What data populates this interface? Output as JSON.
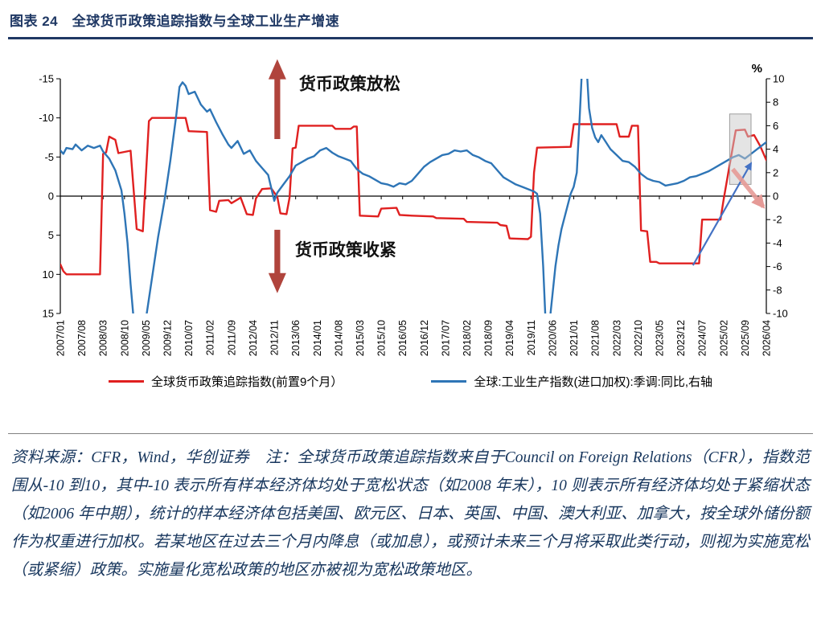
{
  "title": "图表 24　全球货币政策追踪指数与全球工业生产增速",
  "footnote": "资料来源：CFR，Wind，华创证券　注：全球货币政策追踪指数来自于Council on Foreign Relations（CFR），指数范围从-10 到10，其中-10 表示所有样本经济体均处于宽松状态（如2008 年末），10 则表示所有经济体均处于紧缩状态（如2006 年中期），统计的样本经济体包括美国、欧元区、日本、英国、中国、澳大利亚、加拿大，按全球外储份额作为权重进行加权。若某地区在过去三个月内降息（或加息），或预计未来三个月将采取此类行动，则视为实施宽松（或紧缩）政策。实施量化宽松政策的地区亦被视为宽松政策地区。",
  "chart_data": {
    "type": "line",
    "title": "全球货币政策追踪指数与全球工业生产增速",
    "x_min": "2007/01",
    "x_max": "2026/04",
    "x_ticks": [
      "2007/01",
      "2007/08",
      "2008/03",
      "2008/10",
      "2009/05",
      "2009/12",
      "2010/07",
      "2011/02",
      "2011/09",
      "2012/04",
      "2012/11",
      "2013/06",
      "2014/01",
      "2014/08",
      "2015/03",
      "2015/10",
      "2016/05",
      "2016/12",
      "2017/07",
      "2018/02",
      "2018/09",
      "2019/04",
      "2019/11",
      "2020/06",
      "2021/01",
      "2021/08",
      "2022/03",
      "2022/10",
      "2023/05",
      "2023/12",
      "2024/07",
      "2025/02",
      "2025/09",
      "2026/04"
    ],
    "left_axis": {
      "min": -15,
      "max": 15,
      "inverted_display": true,
      "ticks": [
        -15,
        -10,
        -5,
        0,
        5,
        10,
        15
      ]
    },
    "right_axis": {
      "min": -10,
      "max": 10,
      "label": "%",
      "ticks": [
        10,
        8,
        6,
        4,
        2,
        0,
        -2,
        -4,
        -6,
        -8,
        -10
      ]
    },
    "grid": false,
    "legend_position": "bottom",
    "series": [
      {
        "name": "全球货币政策追踪指数(前置9个月）",
        "color": "#e02020",
        "axis": "left",
        "points": [
          [
            "2007/01",
            8.7
          ],
          [
            "2007/02",
            9.6
          ],
          [
            "2007/03",
            10
          ],
          [
            "2008/02",
            10
          ],
          [
            "2008/03",
            -5.4
          ],
          [
            "2008/04",
            -5.6
          ],
          [
            "2008/05",
            -7.6
          ],
          [
            "2008/07",
            -7.2
          ],
          [
            "2008/08",
            -5.5
          ],
          [
            "2008/12",
            -5.8
          ],
          [
            "2009/02",
            4.2
          ],
          [
            "2009/04",
            4.5
          ],
          [
            "2009/06",
            -9.6
          ],
          [
            "2009/07",
            -10
          ],
          [
            "2010/06",
            -10
          ],
          [
            "2010/07",
            -8.3
          ],
          [
            "2011/01",
            -8.2
          ],
          [
            "2011/02",
            1.8
          ],
          [
            "2011/04",
            2.0
          ],
          [
            "2011/05",
            0.6
          ],
          [
            "2011/08",
            0.5
          ],
          [
            "2011/09",
            0.9
          ],
          [
            "2011/12",
            0.2
          ],
          [
            "2012/02",
            2.3
          ],
          [
            "2012/04",
            2.4
          ],
          [
            "2012/05",
            0.3
          ],
          [
            "2012/07",
            -0.9
          ],
          [
            "2012/10",
            -1.0
          ],
          [
            "2012/12",
            0.1
          ],
          [
            "2013/01",
            2.2
          ],
          [
            "2013/03",
            2.3
          ],
          [
            "2013/04",
            0.2
          ],
          [
            "2013/05",
            -6.1
          ],
          [
            "2013/06",
            -6.2
          ],
          [
            "2013/07",
            -9.0
          ],
          [
            "2014/06",
            -9.0
          ],
          [
            "2014/07",
            -8.6
          ],
          [
            "2014/12",
            -8.6
          ],
          [
            "2015/01",
            -8.9
          ],
          [
            "2015/02",
            -8.9
          ],
          [
            "2015/03",
            2.5
          ],
          [
            "2015/09",
            2.6
          ],
          [
            "2015/10",
            1.6
          ],
          [
            "2016/03",
            1.5
          ],
          [
            "2016/04",
            2.4
          ],
          [
            "2016/08",
            2.5
          ],
          [
            "2017/03",
            2.6
          ],
          [
            "2017/04",
            2.8
          ],
          [
            "2018/01",
            2.9
          ],
          [
            "2018/02",
            3.3
          ],
          [
            "2018/12",
            3.4
          ],
          [
            "2019/01",
            3.7
          ],
          [
            "2019/03",
            3.8
          ],
          [
            "2019/04",
            5.4
          ],
          [
            "2019/10",
            5.5
          ],
          [
            "2019/11",
            5.2
          ],
          [
            "2019/12",
            -3.0
          ],
          [
            "2020/01",
            -6.2
          ],
          [
            "2020/12",
            -6.3
          ],
          [
            "2021/01",
            -9.2
          ],
          [
            "2022/03",
            -9.2
          ],
          [
            "2022/04",
            -7.6
          ],
          [
            "2022/07",
            -7.6
          ],
          [
            "2022/08",
            -9.0
          ],
          [
            "2022/10",
            -9.0
          ],
          [
            "2022/11",
            4.4
          ],
          [
            "2023/01",
            4.5
          ],
          [
            "2023/02",
            8.4
          ],
          [
            "2023/04",
            8.4
          ],
          [
            "2023/05",
            8.6
          ],
          [
            "2024/06",
            8.6
          ],
          [
            "2024/07",
            3.0
          ],
          [
            "2025/01",
            3.0
          ],
          [
            "2025/02",
            0.5
          ],
          [
            "2025/04",
            -4.0
          ],
          [
            "2025/06",
            -8.4
          ],
          [
            "2025/09",
            -8.5
          ],
          [
            "2025/10",
            -7.6
          ],
          [
            "2025/12",
            -7.8
          ],
          [
            "2026/02",
            -6.4
          ],
          [
            "2026/04",
            -4.6
          ]
        ]
      },
      {
        "name": "全球:工业生产指数(进口加权):季调:同比,右轴",
        "color": "#2e75b6",
        "axis": "right",
        "points": [
          [
            "2007/01",
            3.9
          ],
          [
            "2007/02",
            3.6
          ],
          [
            "2007/03",
            4.1
          ],
          [
            "2007/05",
            4.0
          ],
          [
            "2007/06",
            4.4
          ],
          [
            "2007/08",
            3.9
          ],
          [
            "2007/10",
            4.3
          ],
          [
            "2007/12",
            4.1
          ],
          [
            "2008/02",
            4.3
          ],
          [
            "2008/03",
            3.8
          ],
          [
            "2008/05",
            3.2
          ],
          [
            "2008/07",
            2.2
          ],
          [
            "2008/09",
            0.5
          ],
          [
            "2008/10",
            -1.5
          ],
          [
            "2008/11",
            -4.0
          ],
          [
            "2008/12",
            -7.5
          ],
          [
            "2009/01",
            -10.5
          ],
          [
            "2009/02",
            -12.0
          ],
          [
            "2009/04",
            -12.0
          ],
          [
            "2009/05",
            -10.5
          ],
          [
            "2009/07",
            -7.0
          ],
          [
            "2009/09",
            -3.5
          ],
          [
            "2009/11",
            -0.5
          ],
          [
            "2010/01",
            3.0
          ],
          [
            "2010/03",
            7.0
          ],
          [
            "2010/04",
            9.3
          ],
          [
            "2010/05",
            9.7
          ],
          [
            "2010/06",
            9.4
          ],
          [
            "2010/07",
            8.7
          ],
          [
            "2010/09",
            8.9
          ],
          [
            "2010/11",
            7.8
          ],
          [
            "2011/01",
            7.2
          ],
          [
            "2011/02",
            7.4
          ],
          [
            "2011/04",
            6.3
          ],
          [
            "2011/06",
            5.3
          ],
          [
            "2011/08",
            4.4
          ],
          [
            "2011/09",
            4.1
          ],
          [
            "2011/11",
            4.7
          ],
          [
            "2012/01",
            3.6
          ],
          [
            "2012/03",
            3.9
          ],
          [
            "2012/05",
            3.0
          ],
          [
            "2012/07",
            2.4
          ],
          [
            "2012/09",
            1.8
          ],
          [
            "2012/11",
            -0.4
          ],
          [
            "2012/12",
            0.3
          ],
          [
            "2013/02",
            1.0
          ],
          [
            "2013/04",
            1.7
          ],
          [
            "2013/06",
            2.6
          ],
          [
            "2013/08",
            2.9
          ],
          [
            "2013/10",
            3.2
          ],
          [
            "2013/12",
            3.4
          ],
          [
            "2014/02",
            3.9
          ],
          [
            "2014/04",
            4.1
          ],
          [
            "2014/06",
            3.7
          ],
          [
            "2014/08",
            3.4
          ],
          [
            "2014/10",
            3.2
          ],
          [
            "2014/12",
            3.0
          ],
          [
            "2015/02",
            2.3
          ],
          [
            "2015/04",
            1.9
          ],
          [
            "2015/06",
            1.7
          ],
          [
            "2015/08",
            1.4
          ],
          [
            "2015/10",
            1.1
          ],
          [
            "2015/12",
            1.0
          ],
          [
            "2016/02",
            0.8
          ],
          [
            "2016/04",
            1.1
          ],
          [
            "2016/06",
            1.0
          ],
          [
            "2016/08",
            1.3
          ],
          [
            "2016/10",
            1.9
          ],
          [
            "2016/12",
            2.5
          ],
          [
            "2017/02",
            2.9
          ],
          [
            "2017/04",
            3.2
          ],
          [
            "2017/06",
            3.5
          ],
          [
            "2017/08",
            3.6
          ],
          [
            "2017/10",
            3.9
          ],
          [
            "2017/12",
            3.8
          ],
          [
            "2018/02",
            3.9
          ],
          [
            "2018/04",
            3.5
          ],
          [
            "2018/06",
            3.3
          ],
          [
            "2018/08",
            3.0
          ],
          [
            "2018/10",
            2.8
          ],
          [
            "2018/12",
            2.2
          ],
          [
            "2019/02",
            1.6
          ],
          [
            "2019/04",
            1.3
          ],
          [
            "2019/06",
            1.0
          ],
          [
            "2019/08",
            0.8
          ],
          [
            "2019/10",
            0.6
          ],
          [
            "2019/12",
            0.4
          ],
          [
            "2020/01",
            0.2
          ],
          [
            "2020/02",
            -1.5
          ],
          [
            "2020/03",
            -6.0
          ],
          [
            "2020/04",
            -12.0
          ],
          [
            "2020/05",
            -11.0
          ],
          [
            "2020/06",
            -8.5
          ],
          [
            "2020/07",
            -6.0
          ],
          [
            "2020/08",
            -4.2
          ],
          [
            "2020/09",
            -2.8
          ],
          [
            "2020/10",
            -1.8
          ],
          [
            "2020/11",
            -0.8
          ],
          [
            "2020/12",
            0.2
          ],
          [
            "2021/01",
            0.8
          ],
          [
            "2021/02",
            2.0
          ],
          [
            "2021/03",
            7.0
          ],
          [
            "2021/04",
            12.5
          ],
          [
            "2021/05",
            12.0
          ],
          [
            "2021/06",
            7.5
          ],
          [
            "2021/07",
            5.8
          ],
          [
            "2021/08",
            5.0
          ],
          [
            "2021/09",
            4.6
          ],
          [
            "2021/10",
            5.2
          ],
          [
            "2021/11",
            4.8
          ],
          [
            "2022/01",
            4.0
          ],
          [
            "2022/03",
            3.5
          ],
          [
            "2022/05",
            3.0
          ],
          [
            "2022/07",
            2.9
          ],
          [
            "2022/09",
            2.5
          ],
          [
            "2022/11",
            1.9
          ],
          [
            "2023/01",
            1.5
          ],
          [
            "2023/03",
            1.3
          ],
          [
            "2023/05",
            1.2
          ],
          [
            "2023/07",
            0.9
          ],
          [
            "2023/09",
            1.0
          ],
          [
            "2023/11",
            1.1
          ],
          [
            "2024/01",
            1.3
          ],
          [
            "2024/03",
            1.6
          ],
          [
            "2024/05",
            1.7
          ],
          [
            "2024/07",
            1.9
          ],
          [
            "2024/09",
            2.1
          ],
          [
            "2024/11",
            2.4
          ],
          [
            "2025/01",
            2.7
          ],
          [
            "2025/03",
            3.0
          ],
          [
            "2025/05",
            3.3
          ],
          [
            "2025/07",
            3.5
          ],
          [
            "2025/09",
            3.2
          ],
          [
            "2025/11",
            3.6
          ],
          [
            "2026/01",
            4.0
          ],
          [
            "2026/04",
            4.6
          ]
        ]
      }
    ],
    "annotations": {
      "easing_arrow": {
        "x": "2012/12",
        "tip": -17.5,
        "base": -7.3,
        "axis": "left",
        "direction": "up",
        "color": "#b0443c",
        "label": "货币政策放松"
      },
      "tightening_arrow": {
        "x": "2012/12",
        "tip": 12.4,
        "base": 4.3,
        "axis": "left",
        "direction": "down",
        "color": "#b0443c",
        "label": "货币政策收紧"
      },
      "blue_trend_arrow": {
        "from": [
          "2024/04",
          -5.9
        ],
        "to": [
          "2025/11",
          2.8
        ],
        "axis": "right",
        "color": "#4472c4"
      },
      "fade_red_arrow": {
        "from": [
          "2025/05",
          2.3
        ],
        "to": [
          "2026/03",
          -0.9
        ],
        "axis": "right",
        "color": "#e59a96"
      },
      "highlight_box": {
        "x0": "2025/04",
        "x1": "2025/11",
        "y_top": 7.0,
        "y_bottom": 1.0,
        "fill": "#c9c9c9",
        "stroke": "#9e9e9e"
      }
    }
  }
}
